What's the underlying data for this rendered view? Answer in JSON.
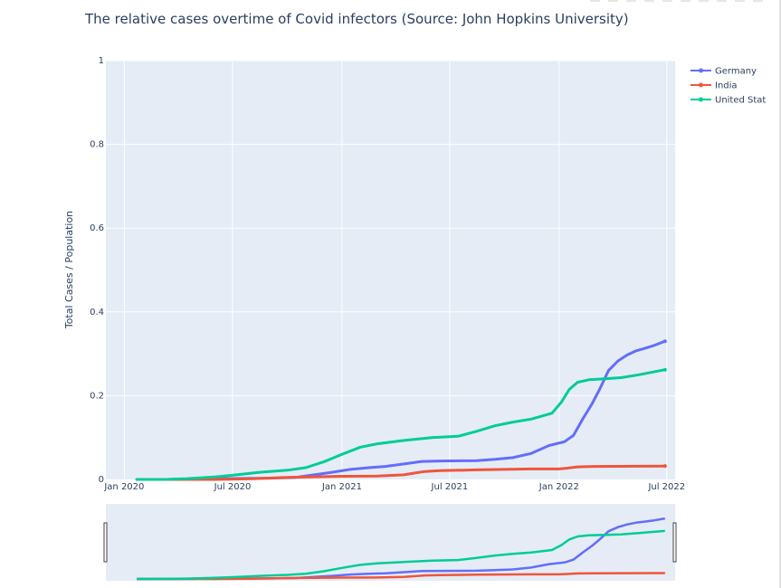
{
  "toolbar": {
    "icons": [
      "camera-icon",
      "zoom-icon",
      "pan-icon",
      "box-select-icon",
      "lasso-icon",
      "zoom-in-icon",
      "zoom-out-icon",
      "autoscale-icon",
      "reset-axes-icon",
      "plotly-logo-icon"
    ]
  },
  "chart_data": {
    "type": "line",
    "title": "The relative cases overtime of Covid infectors (Source: John Hopkins University)",
    "xlabel": "",
    "ylabel": "Total Cases / Population",
    "x_range": [
      "2019-12-01",
      "2022-07-15"
    ],
    "ylim": [
      0,
      1
    ],
    "yticks": [
      0,
      0.2,
      0.4,
      0.6,
      0.8,
      1
    ],
    "ytick_labels": [
      "0",
      "0.2",
      "0.4",
      "0.6",
      "0.8",
      "1"
    ],
    "xticks": [
      "2020-01-01",
      "2020-07-01",
      "2021-01-01",
      "2021-07-01",
      "2022-01-01",
      "2022-07-01"
    ],
    "xtick_labels": [
      "Jan 2020",
      "Jul 2020",
      "Jan 2021",
      "Jul 2021",
      "Jan 2022",
      "Jul 2022"
    ],
    "grid": true,
    "legend_position": "top-right",
    "range_slider": true,
    "series": [
      {
        "name": "Germany",
        "color": "#636efa",
        "points": [
          [
            "2020-01-22",
            0
          ],
          [
            "2020-03-15",
            0.0001
          ],
          [
            "2020-06-01",
            0.002
          ],
          [
            "2020-09-01",
            0.003
          ],
          [
            "2020-10-15",
            0.005
          ],
          [
            "2020-11-15",
            0.011
          ],
          [
            "2020-12-15",
            0.017
          ],
          [
            "2021-01-15",
            0.024
          ],
          [
            "2021-02-15",
            0.028
          ],
          [
            "2021-03-15",
            0.031
          ],
          [
            "2021-04-15",
            0.037
          ],
          [
            "2021-05-15",
            0.043
          ],
          [
            "2021-06-15",
            0.044
          ],
          [
            "2021-08-15",
            0.045
          ],
          [
            "2021-09-15",
            0.048
          ],
          [
            "2021-10-15",
            0.052
          ],
          [
            "2021-11-15",
            0.062
          ],
          [
            "2021-12-15",
            0.081
          ],
          [
            "2022-01-10",
            0.09
          ],
          [
            "2022-01-25",
            0.105
          ],
          [
            "2022-02-10",
            0.145
          ],
          [
            "2022-02-25",
            0.18
          ],
          [
            "2022-03-10",
            0.215
          ],
          [
            "2022-03-25",
            0.26
          ],
          [
            "2022-04-10",
            0.283
          ],
          [
            "2022-04-25",
            0.297
          ],
          [
            "2022-05-10",
            0.307
          ],
          [
            "2022-05-25",
            0.313
          ],
          [
            "2022-06-10",
            0.32
          ],
          [
            "2022-06-28",
            0.33
          ]
        ]
      },
      {
        "name": "India",
        "color": "#ef553b",
        "points": [
          [
            "2020-01-22",
            0
          ],
          [
            "2020-06-01",
            0.0001
          ],
          [
            "2020-08-01",
            0.0015
          ],
          [
            "2020-10-01",
            0.005
          ],
          [
            "2021-01-01",
            0.0075
          ],
          [
            "2021-03-01",
            0.008
          ],
          [
            "2021-04-15",
            0.011
          ],
          [
            "2021-05-01",
            0.015
          ],
          [
            "2021-05-20",
            0.019
          ],
          [
            "2021-06-15",
            0.021
          ],
          [
            "2021-08-15",
            0.023
          ],
          [
            "2021-11-15",
            0.025
          ],
          [
            "2022-01-01",
            0.025
          ],
          [
            "2022-01-15",
            0.027
          ],
          [
            "2022-02-01",
            0.03
          ],
          [
            "2022-03-01",
            0.031
          ],
          [
            "2022-06-28",
            0.032
          ]
        ]
      },
      {
        "name": "United States",
        "legend_label": "United Stat",
        "color": "#00cc96",
        "points": [
          [
            "2020-01-22",
            0
          ],
          [
            "2020-03-15",
            0.0003
          ],
          [
            "2020-04-15",
            0.002
          ],
          [
            "2020-06-01",
            0.006
          ],
          [
            "2020-07-15",
            0.012
          ],
          [
            "2020-08-15",
            0.017
          ],
          [
            "2020-10-01",
            0.022
          ],
          [
            "2020-11-01",
            0.028
          ],
          [
            "2020-12-01",
            0.042
          ],
          [
            "2021-01-01",
            0.06
          ],
          [
            "2021-02-01",
            0.077
          ],
          [
            "2021-03-01",
            0.085
          ],
          [
            "2021-04-15",
            0.093
          ],
          [
            "2021-06-01",
            0.1
          ],
          [
            "2021-07-15",
            0.103
          ],
          [
            "2021-08-15",
            0.115
          ],
          [
            "2021-09-15",
            0.128
          ],
          [
            "2021-10-15",
            0.137
          ],
          [
            "2021-11-15",
            0.144
          ],
          [
            "2021-12-20",
            0.158
          ],
          [
            "2022-01-05",
            0.185
          ],
          [
            "2022-01-18",
            0.215
          ],
          [
            "2022-02-01",
            0.232
          ],
          [
            "2022-02-20",
            0.238
          ],
          [
            "2022-03-15",
            0.24
          ],
          [
            "2022-04-15",
            0.243
          ],
          [
            "2022-05-15",
            0.25
          ],
          [
            "2022-06-28",
            0.262
          ]
        ]
      }
    ]
  }
}
